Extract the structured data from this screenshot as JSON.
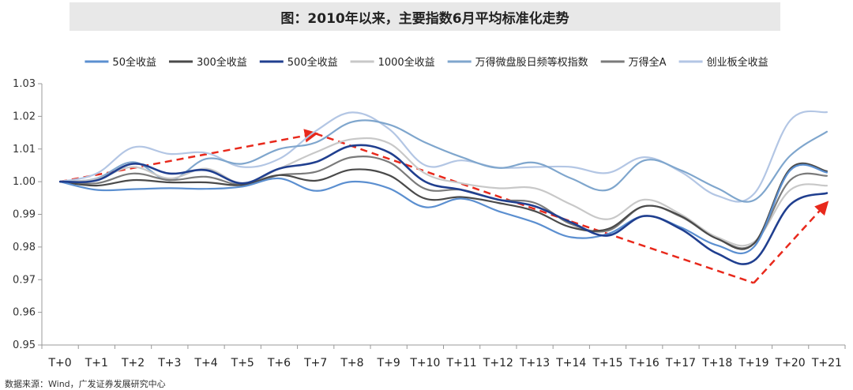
{
  "chart_data": {
    "type": "line",
    "title": "图：2010年以来，主要指数6月平均标准化走势",
    "xlabel": "",
    "ylabel": "",
    "categories": [
      "T+0",
      "T+1",
      "T+2",
      "T+3",
      "T+4",
      "T+5",
      "T+6",
      "T+7",
      "T+8",
      "T+9",
      "T+10",
      "T+11",
      "T+12",
      "T+13",
      "T+14",
      "T+15",
      "T+16",
      "T+17",
      "T+18",
      "T+19",
      "T+20",
      "T+21"
    ],
    "ylim": [
      0.95,
      1.03
    ],
    "yticks": [
      "0.95",
      "0.96",
      "0.97",
      "0.98",
      "0.99",
      "1.00",
      "1.01",
      "1.02",
      "1.03"
    ],
    "grid": false,
    "legend_position": "top",
    "series": [
      {
        "name": "50全收益",
        "color": "#5b8fd0",
        "width": 2.2,
        "values": [
          1.0,
          0.9975,
          0.9977,
          0.998,
          0.9978,
          0.9985,
          1.001,
          0.9972,
          1.0,
          0.998,
          0.9922,
          0.9948,
          0.991,
          0.9875,
          0.983,
          0.984,
          0.9895,
          0.986,
          0.9805,
          0.98,
          1.0035,
          1.0028
        ]
      },
      {
        "name": "300全收益",
        "color": "#4a4a4a",
        "width": 2.2,
        "values": [
          1.0,
          0.9988,
          1.0005,
          0.9998,
          0.9998,
          0.999,
          1.002,
          1.0003,
          1.0037,
          1.002,
          0.9948,
          0.9953,
          0.9935,
          0.991,
          0.986,
          0.9855,
          0.9925,
          0.9895,
          0.9825,
          0.981,
          1.004,
          1.0032
        ]
      },
      {
        "name": "500全收益",
        "color": "#203f8f",
        "width": 2.6,
        "values": [
          1.0,
          1.0004,
          1.0055,
          1.0025,
          1.0035,
          0.9995,
          1.004,
          1.006,
          1.011,
          1.009,
          1.0,
          0.9975,
          0.9945,
          0.9925,
          0.9875,
          0.9835,
          0.9895,
          0.9855,
          0.978,
          0.9758,
          0.993,
          0.9965
        ]
      },
      {
        "name": "1000全收益",
        "color": "#c8c8c8",
        "width": 2.2,
        "values": [
          1.0,
          1.0008,
          1.0045,
          1.001,
          1.004,
          0.9995,
          1.004,
          1.009,
          1.013,
          1.0118,
          1.0025,
          0.9995,
          0.998,
          0.998,
          0.993,
          0.9885,
          0.9945,
          0.99,
          0.983,
          0.9815,
          0.9975,
          0.9988
        ]
      },
      {
        "name": "万得微盘股日频等权指数",
        "color": "#7fa6cd",
        "width": 2.2,
        "values": [
          1.0,
          1.001,
          1.006,
          1.0005,
          1.007,
          1.0055,
          1.01,
          1.012,
          1.0183,
          1.0175,
          1.012,
          1.0075,
          1.0042,
          1.0058,
          1.001,
          0.9975,
          1.0065,
          1.0035,
          0.998,
          0.9943,
          1.008,
          1.0153
        ]
      },
      {
        "name": "万得全A",
        "color": "#7a7a7a",
        "width": 2.2,
        "values": [
          1.0,
          0.9995,
          1.0025,
          1.0005,
          1.0015,
          0.999,
          1.002,
          1.003,
          1.0075,
          1.006,
          0.9978,
          0.9975,
          0.9945,
          0.9935,
          0.987,
          0.985,
          0.9925,
          0.9893,
          0.9825,
          0.981,
          1.0005,
          1.0018
        ]
      },
      {
        "name": "创业板全收益",
        "color": "#b3c6e4",
        "width": 2.2,
        "values": [
          1.0,
          1.0025,
          1.0105,
          1.0085,
          1.0088,
          1.0045,
          1.007,
          1.0155,
          1.0212,
          1.0162,
          1.005,
          1.0065,
          1.0043,
          1.0045,
          1.0045,
          1.0027,
          1.0075,
          1.003,
          0.9957,
          0.9962,
          1.0188,
          1.0213
        ]
      }
    ],
    "annotation_trend": {
      "color": "#e8291c",
      "points": [
        [
          "T+0",
          1.0
        ],
        [
          "T+7",
          1.0147
        ],
        [
          "T+14",
          0.9878
        ],
        [
          "T+19",
          0.969
        ],
        [
          "T+21",
          0.9935
        ]
      ]
    }
  },
  "source": "数据来源：Wind，广发证券发展研究中心"
}
